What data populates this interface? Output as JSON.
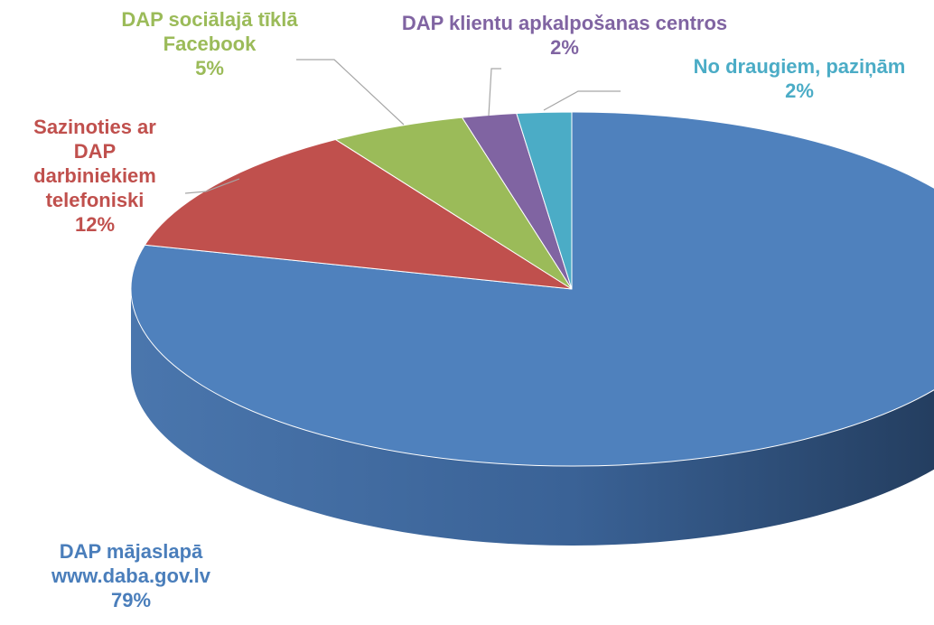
{
  "chart_data": {
    "type": "pie",
    "categories": [
      "DAP mājaslapā www.daba.gov.lv",
      "Sazinoties ar DAP darbiniekiem telefoniski",
      "DAP sociālajā tīklā Facebook",
      "DAP klientu apkalpošanas centros",
      "No draugiem, paziņām"
    ],
    "values": [
      79,
      12,
      5,
      2,
      2
    ],
    "value_labels": [
      "79%",
      "12%",
      "5%",
      "2%",
      "2%"
    ],
    "colors": [
      "#4f81bd",
      "#c0504d",
      "#9bbb59",
      "#8064a2",
      "#4bacc6"
    ],
    "label_colors": [
      "#4a7ebb",
      "#c0504d",
      "#9bbb59",
      "#8064a2",
      "#4bacc6"
    ]
  }
}
